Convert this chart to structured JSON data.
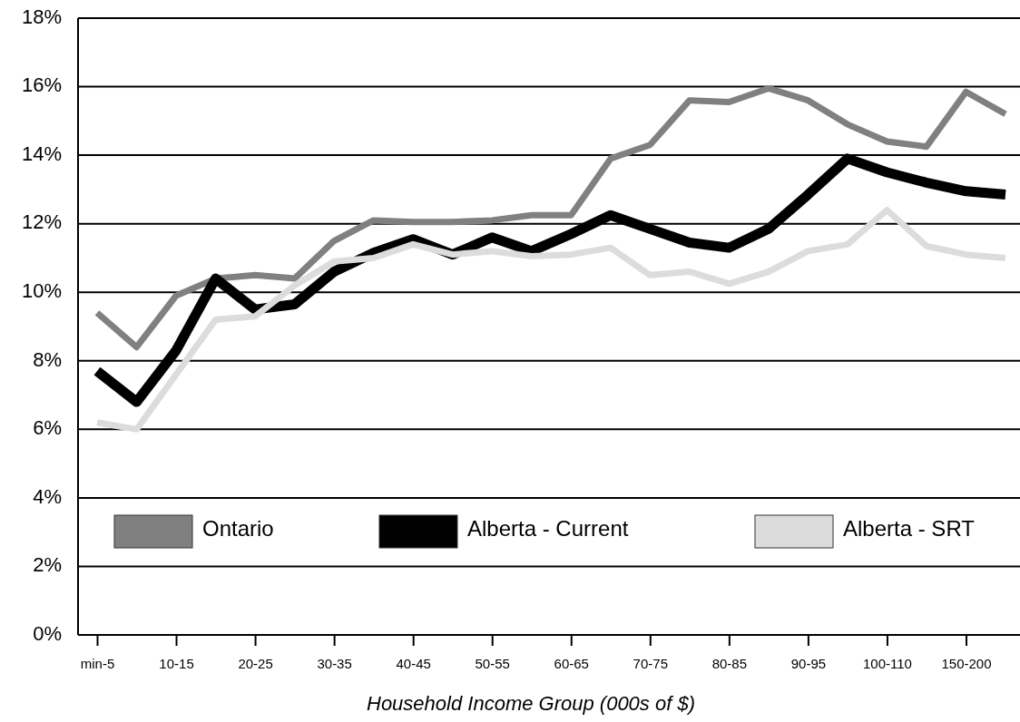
{
  "chart_data": {
    "type": "line",
    "xlabel": "Household Income Group  (000s of $)",
    "categories": [
      "min-5",
      null,
      "10-15",
      null,
      "20-25",
      null,
      "30-35",
      null,
      "40-45",
      null,
      "50-55",
      null,
      "60-65",
      null,
      "70-75",
      null,
      "80-85",
      null,
      "90-95",
      null,
      "100-110",
      null,
      "150-200",
      null
    ],
    "series": [
      {
        "name": "Ontario",
        "color": "#808080",
        "values": [
          9.4,
          8.4,
          9.9,
          10.4,
          10.5,
          10.4,
          11.5,
          12.1,
          12.05,
          12.05,
          12.1,
          12.25,
          12.25,
          13.9,
          14.3,
          15.6,
          15.55,
          15.95,
          15.6,
          14.9,
          14.4,
          14.25,
          15.85,
          15.2
        ]
      },
      {
        "name": "Alberta - Current",
        "color": "#000000",
        "values": [
          7.7,
          6.8,
          8.3,
          10.4,
          9.5,
          9.65,
          10.6,
          11.15,
          11.55,
          11.1,
          11.6,
          11.2,
          11.7,
          12.25,
          11.85,
          11.45,
          11.3,
          11.85,
          12.85,
          13.9,
          13.5,
          13.2,
          12.95,
          12.85
        ]
      },
      {
        "name": "Alberta - SRT",
        "color": "#dcdcdc",
        "values": [
          6.2,
          6.0,
          7.6,
          9.2,
          9.3,
          10.2,
          10.9,
          11.0,
          11.4,
          11.1,
          11.2,
          11.05,
          11.1,
          11.3,
          10.5,
          10.6,
          10.25,
          10.6,
          11.2,
          11.4,
          12.4,
          11.35,
          11.1,
          11.0
        ]
      }
    ],
    "ylim": [
      0,
      18
    ],
    "yticks": [
      {
        "value": 0,
        "label": "0%"
      },
      {
        "value": 2,
        "label": "2%"
      },
      {
        "value": 4,
        "label": "4%"
      },
      {
        "value": 6,
        "label": "6%"
      },
      {
        "value": 8,
        "label": "8%"
      },
      {
        "value": 10,
        "label": "10%"
      },
      {
        "value": 12,
        "label": "12%"
      },
      {
        "value": 14,
        "label": "14%"
      },
      {
        "value": 16,
        "label": "16%"
      },
      {
        "value": 18,
        "label": "18%"
      }
    ],
    "grid": "y",
    "legend": "bottom",
    "marker": "none",
    "line_style": "solid"
  }
}
